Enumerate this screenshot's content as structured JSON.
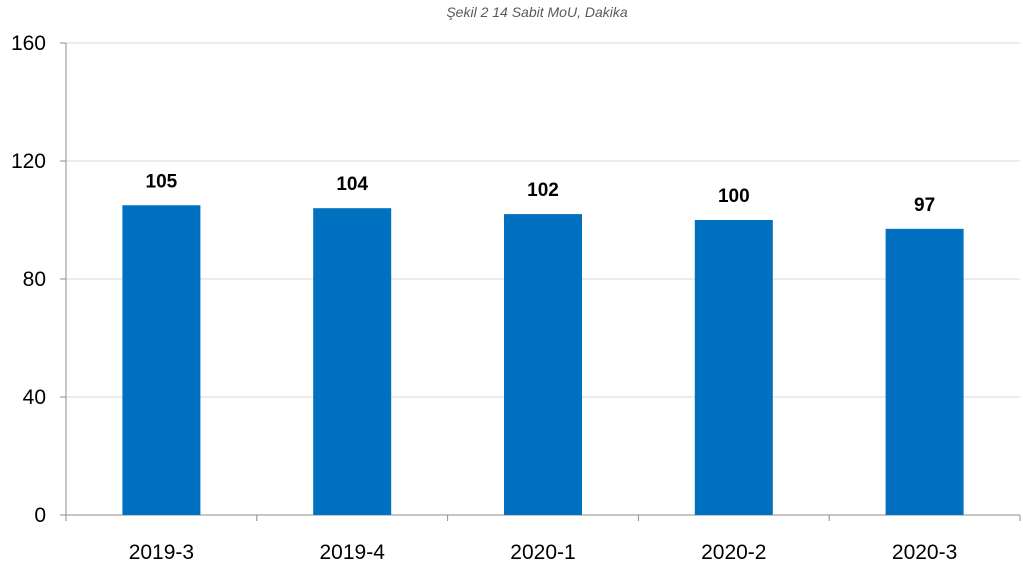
{
  "chart_data": {
    "type": "bar",
    "title": "Şekil 2 14 Sabit MoU, Dakika",
    "xlabel": "",
    "ylabel": "",
    "categories": [
      "2019-3",
      "2019-4",
      "2020-1",
      "2020-2",
      "2020-3"
    ],
    "values": [
      105,
      104,
      102,
      100,
      97
    ],
    "data_labels": [
      "105",
      "104",
      "102",
      "100",
      "97"
    ],
    "ylim": [
      0,
      160
    ],
    "yticks": [
      0,
      40,
      80,
      120,
      160
    ],
    "ytick_labels": [
      "0",
      "40",
      "80",
      "120",
      "160"
    ],
    "grid": true,
    "legend": "none",
    "bar_color": "#0070c0"
  }
}
